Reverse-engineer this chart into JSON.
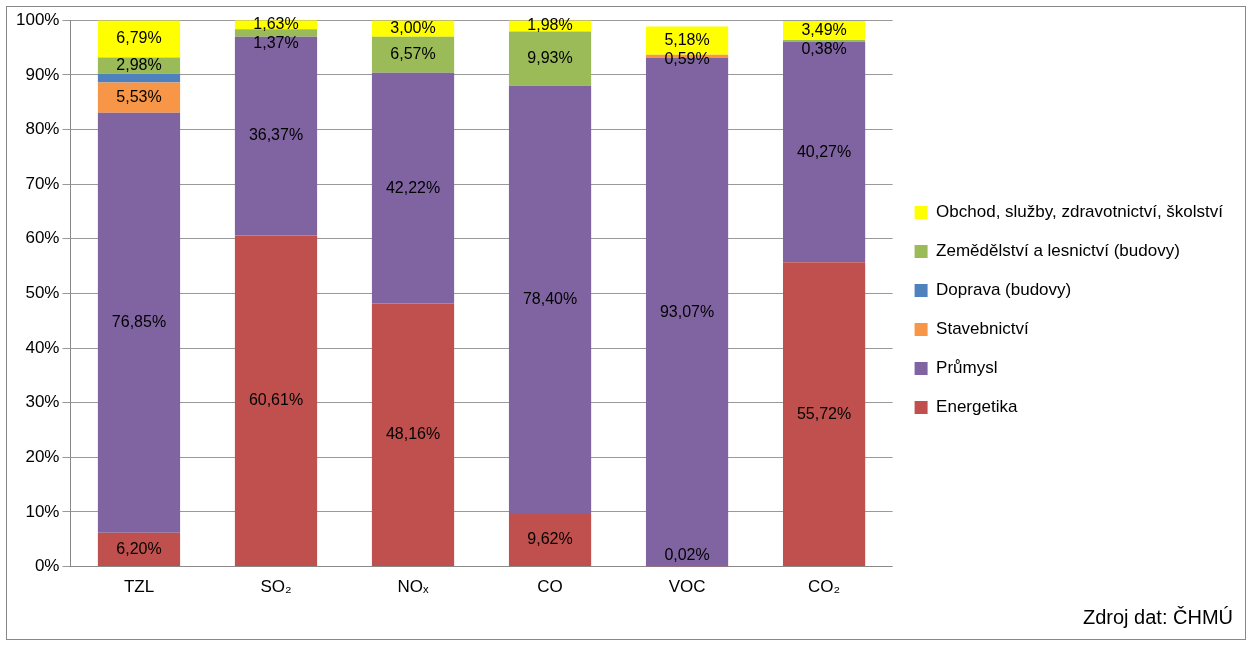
{
  "chart_data": {
    "type": "bar",
    "stacked": true,
    "categories": [
      "TZL",
      "SO₂",
      "NOₓ",
      "CO",
      "VOC",
      "CO₂"
    ],
    "series": [
      {
        "name": "Energetika",
        "color": "#c0504d",
        "values": [
          6.2,
          60.61,
          48.16,
          9.62,
          0.02,
          55.72
        ],
        "value_labels": [
          "6,20%",
          "60,61%",
          "48,16%",
          "9,62%",
          "0,02%",
          "55,72%"
        ]
      },
      {
        "name": "Průmysl",
        "color": "#8064a2",
        "values": [
          76.85,
          36.37,
          42.22,
          78.4,
          93.07,
          40.27
        ],
        "value_labels": [
          "76,85%",
          "36,37%",
          "42,22%",
          "78,40%",
          "93,07%",
          "40,27%"
        ]
      },
      {
        "name": "Stavebnictví",
        "color": "#f79646",
        "values": [
          5.53,
          null,
          null,
          null,
          0.59,
          null
        ],
        "value_labels": [
          "5,53%",
          null,
          null,
          null,
          "0,59%",
          null
        ]
      },
      {
        "name": "Doprava (budovy)",
        "color": "#4f81bd",
        "values": [
          1.6,
          null,
          null,
          null,
          null,
          null
        ],
        "value_labels": [
          null,
          null,
          null,
          null,
          null,
          null
        ]
      },
      {
        "name": "Zemědělství a lesnictví (budovy)",
        "color": "#9bbb59",
        "values": [
          2.98,
          1.37,
          6.57,
          9.93,
          null,
          0.38
        ],
        "value_labels": [
          "2,98%",
          "1,37%",
          "6,57%",
          "9,93%",
          null,
          "0,38%"
        ]
      },
      {
        "name": "Obchod, služby, zdravotnictví, školství",
        "color": "#ffff00",
        "values": [
          6.79,
          1.63,
          3.0,
          1.98,
          5.18,
          3.49
        ],
        "value_labels": [
          "6,79%",
          "1,63%",
          "3,00%",
          "1,98%",
          "5,18%",
          "3,49%"
        ]
      }
    ],
    "ylim": [
      0,
      100
    ],
    "yticks": [
      {
        "value": 0,
        "label": "0%"
      },
      {
        "value": 10,
        "label": "10%"
      },
      {
        "value": 20,
        "label": "20%"
      },
      {
        "value": 30,
        "label": "30%"
      },
      {
        "value": 40,
        "label": "40%"
      },
      {
        "value": 50,
        "label": "50%"
      },
      {
        "value": 60,
        "label": "60%"
      },
      {
        "value": 70,
        "label": "70%"
      },
      {
        "value": 80,
        "label": "80%"
      },
      {
        "value": 90,
        "label": "90%"
      },
      {
        "value": 100,
        "label": "100%"
      }
    ],
    "grid": "y",
    "legend": "right",
    "annotations": [
      "Zdroj dat: ČHMÚ"
    ]
  }
}
